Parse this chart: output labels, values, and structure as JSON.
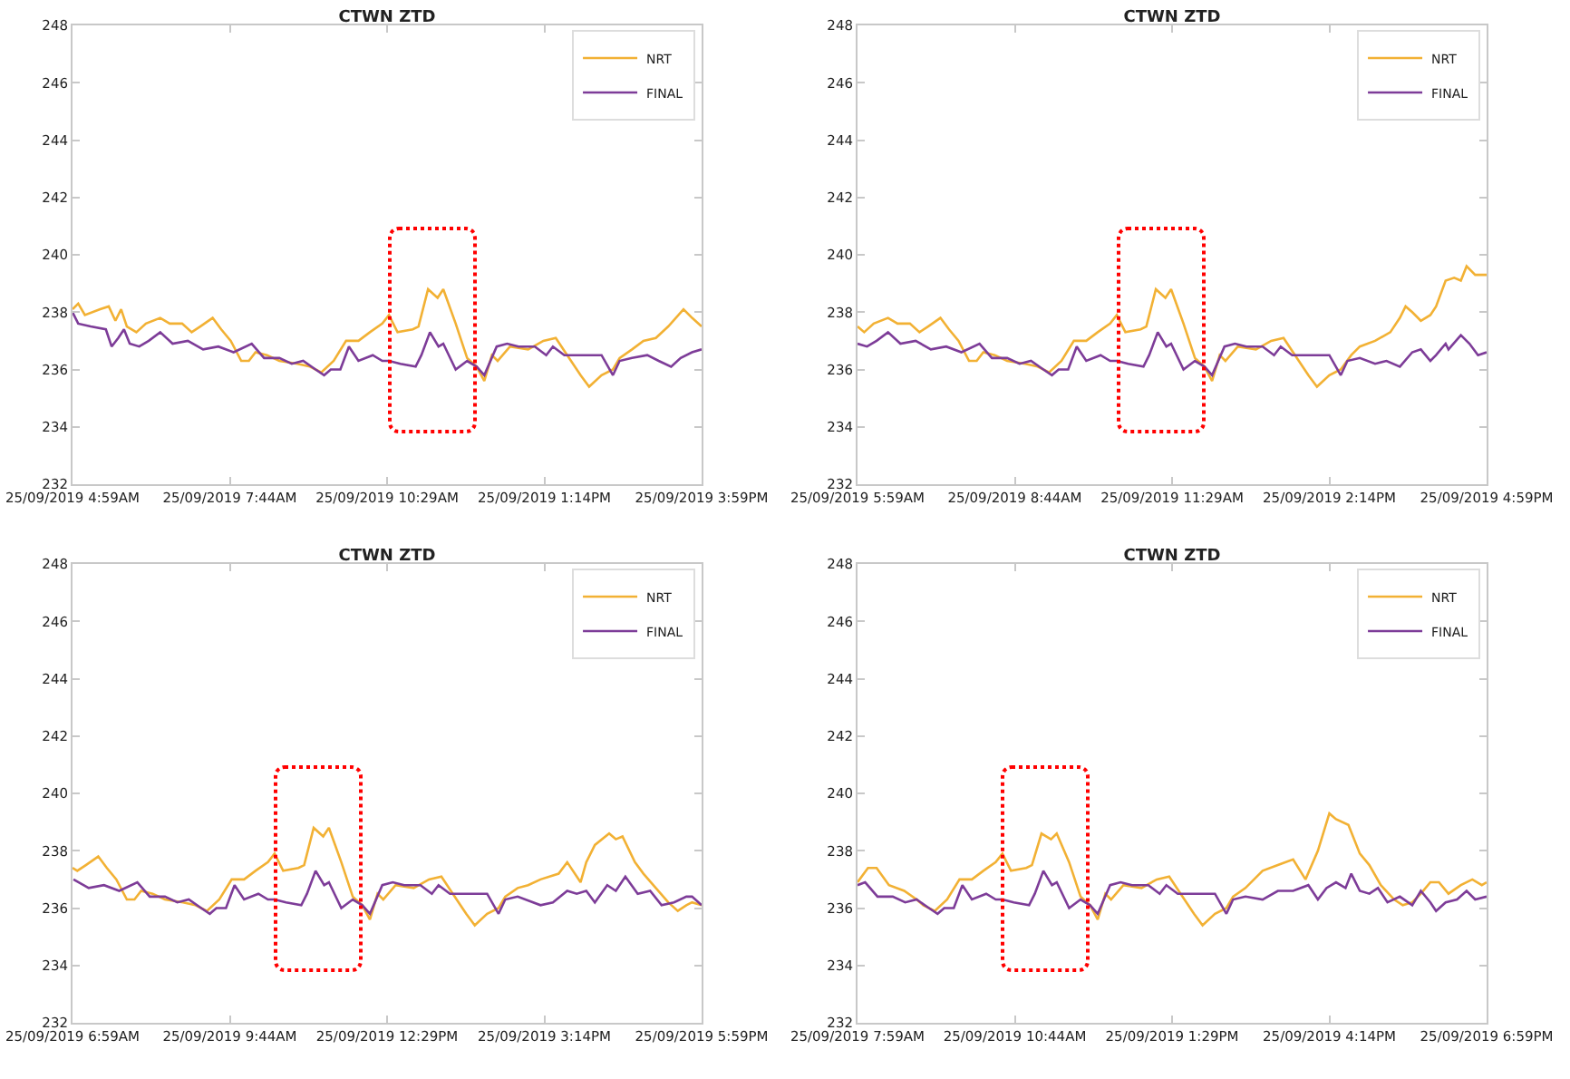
{
  "chart_data": [
    {
      "type": "line",
      "title": "CTWN ZTD",
      "ylim": [
        232,
        248
      ],
      "yticks": [
        232,
        234,
        236,
        238,
        240,
        242,
        244,
        246,
        248
      ],
      "xlim": [
        "2019-09-25T04:59",
        "2019-09-25T15:59"
      ],
      "xticks": [
        {
          "value": "2019-09-25T04:59",
          "label": "25/09/2019 4:59AM"
        },
        {
          "value": "2019-09-25T07:44",
          "label": "25/09/2019 7:44AM"
        },
        {
          "value": "2019-09-25T10:29",
          "label": "25/09/2019 10:29AM"
        },
        {
          "value": "2019-09-25T13:14",
          "label": "25/09/2019 1:14PM"
        },
        {
          "value": "2019-09-25T15:59",
          "label": "25/09/2019 3:59PM"
        }
      ],
      "grid": false,
      "legend": "top right",
      "marker": "none",
      "line_style": "solid",
      "series": [
        {
          "name": "NRT",
          "color": "#f2b134",
          "x": [
            "2019-09-25T04:59",
            "2019-09-25T05:05",
            "2019-09-25T05:12",
            "2019-09-25T05:28",
            "2019-09-25T05:37",
            "2019-09-25T05:44",
            "2019-09-25T05:50",
            "2019-09-25T05:56",
            "2019-09-25T06:06",
            "2019-09-25T06:16",
            "2019-09-25T06:31",
            "2019-09-25T06:41",
            "2019-09-25T06:54",
            "2019-09-25T07:04",
            "2019-09-25T07:13",
            "2019-09-25T07:26",
            "2019-09-25T07:35",
            "2019-09-25T07:45",
            "2019-09-25T07:56",
            "2019-09-25T08:04",
            "2019-09-25T08:11",
            "2019-09-25T08:23",
            "2019-09-25T08:36",
            "2019-09-25T08:55",
            "2019-09-25T09:08",
            "2019-09-25T09:20",
            "2019-09-25T09:33",
            "2019-09-25T09:46",
            "2019-09-25T09:59",
            "2019-09-25T10:11",
            "2019-09-25T10:24",
            "2019-09-25T10:31",
            "2019-09-25T10:40",
            "2019-09-25T10:56",
            "2019-09-25T11:02",
            "2019-09-25T11:12",
            "2019-09-25T11:22",
            "2019-09-25T11:28",
            "2019-09-25T11:41",
            "2019-09-25T11:53",
            "2019-09-25T12:03",
            "2019-09-25T12:11",
            "2019-09-25T12:19",
            "2019-09-25T12:25",
            "2019-09-25T12:38",
            "2019-09-25T12:57",
            "2019-09-25T13:13",
            "2019-09-25T13:26",
            "2019-09-25T13:38",
            "2019-09-25T13:52",
            "2019-09-25T14:01",
            "2019-09-25T14:14",
            "2019-09-25T14:26",
            "2019-09-25T14:33",
            "2019-09-25T14:46",
            "2019-09-25T14:58",
            "2019-09-25T15:11",
            "2019-09-25T15:24",
            "2019-09-25T15:40",
            "2019-09-25T15:49",
            "2019-09-25T15:59"
          ],
          "values": [
            238.1,
            238.3,
            237.9,
            238.1,
            238.2,
            237.7,
            238.1,
            237.5,
            237.3,
            237.6,
            237.8,
            237.6,
            237.6,
            237.3,
            237.5,
            237.8,
            237.4,
            237.0,
            236.3,
            236.3,
            236.6,
            236.5,
            236.3,
            236.2,
            236.1,
            235.9,
            236.3,
            237.0,
            237.0,
            237.3,
            237.6,
            237.9,
            237.3,
            237.4,
            237.5,
            238.8,
            238.5,
            238.8,
            237.6,
            236.4,
            236.1,
            235.6,
            236.5,
            236.3,
            236.8,
            236.7,
            237.0,
            237.1,
            236.5,
            235.8,
            235.4,
            235.8,
            236.0,
            236.4,
            236.7,
            237.0,
            237.1,
            237.5,
            238.1,
            237.8,
            237.5
          ]
        },
        {
          "name": "FINAL",
          "color": "#7d3c98",
          "x": [
            "2019-09-25T04:59",
            "2019-09-25T05:05",
            "2019-09-25T05:18",
            "2019-09-25T05:34",
            "2019-09-25T05:40",
            "2019-09-25T05:47",
            "2019-09-25T05:53",
            "2019-09-25T05:59",
            "2019-09-25T06:09",
            "2019-09-25T06:19",
            "2019-09-25T06:31",
            "2019-09-25T06:44",
            "2019-09-25T07:00",
            "2019-09-25T07:16",
            "2019-09-25T07:32",
            "2019-09-25T07:48",
            "2019-09-25T08:07",
            "2019-09-25T08:20",
            "2019-09-25T08:36",
            "2019-09-25T08:49",
            "2019-09-25T09:01",
            "2019-09-25T09:14",
            "2019-09-25T09:23",
            "2019-09-25T09:30",
            "2019-09-25T09:40",
            "2019-09-25T09:49",
            "2019-09-25T09:59",
            "2019-09-25T10:14",
            "2019-09-25T10:24",
            "2019-09-25T10:31",
            "2019-09-25T10:43",
            "2019-09-25T10:59",
            "2019-09-25T11:05",
            "2019-09-25T11:14",
            "2019-09-25T11:23",
            "2019-09-25T11:28",
            "2019-09-25T11:41",
            "2019-09-25T11:53",
            "2019-09-25T12:03",
            "2019-09-25T12:11",
            "2019-09-25T12:24",
            "2019-09-25T12:35",
            "2019-09-25T12:47",
            "2019-09-25T13:04",
            "2019-09-25T13:16",
            "2019-09-25T13:23",
            "2019-09-25T13:35",
            "2019-09-25T13:52",
            "2019-09-25T14:04",
            "2019-09-25T14:14",
            "2019-09-25T14:26",
            "2019-09-25T14:33",
            "2019-09-25T14:46",
            "2019-09-25T15:02",
            "2019-09-25T15:14",
            "2019-09-25T15:27",
            "2019-09-25T15:37",
            "2019-09-25T15:49",
            "2019-09-25T15:59"
          ],
          "values": [
            238.0,
            237.6,
            237.5,
            237.4,
            236.8,
            237.1,
            237.4,
            236.9,
            236.8,
            237.0,
            237.3,
            236.9,
            237.0,
            236.7,
            236.8,
            236.6,
            236.9,
            236.4,
            236.4,
            236.2,
            236.3,
            236.0,
            235.8,
            236.0,
            236.0,
            236.8,
            236.3,
            236.5,
            236.3,
            236.3,
            236.2,
            236.1,
            236.5,
            237.3,
            236.8,
            236.9,
            236.0,
            236.3,
            236.1,
            235.8,
            236.8,
            236.9,
            236.8,
            236.8,
            236.5,
            236.8,
            236.5,
            236.5,
            236.5,
            236.5,
            235.8,
            236.3,
            236.4,
            236.5,
            236.3,
            236.1,
            236.4,
            236.6,
            236.7
          ]
        }
      ]
    },
    {
      "type": "line",
      "title": "CTWN ZTD",
      "ylim": [
        232,
        248
      ],
      "yticks": [
        232,
        234,
        236,
        238,
        240,
        242,
        244,
        246,
        248
      ],
      "xlim": [
        "2019-09-25T05:59",
        "2019-09-25T16:59"
      ],
      "xticks": [
        {
          "value": "2019-09-25T05:59",
          "label": "25/09/2019 5:59AM"
        },
        {
          "value": "2019-09-25T08:44",
          "label": "25/09/2019 8:44AM"
        },
        {
          "value": "2019-09-25T11:29",
          "label": "25/09/2019 11:29AM"
        },
        {
          "value": "2019-09-25T14:14",
          "label": "25/09/2019 2:14PM"
        },
        {
          "value": "2019-09-25T16:59",
          "label": "25/09/2019 4:59PM"
        }
      ],
      "grid": false,
      "legend": "top right",
      "marker": "none",
      "line_style": "solid",
      "series": [
        {
          "name": "NRT",
          "color": "#f2b134",
          "x": [
            "2019-09-25T05:59",
            "2019-09-25T06:06",
            "2019-09-25T06:16",
            "2019-09-25T06:31",
            "2019-09-25T06:41",
            "2019-09-25T06:54",
            "2019-09-25T07:04",
            "2019-09-25T07:13",
            "2019-09-25T07:26",
            "2019-09-25T07:35",
            "2019-09-25T07:45",
            "2019-09-25T07:56",
            "2019-09-25T08:04",
            "2019-09-25T08:11",
            "2019-09-25T08:23",
            "2019-09-25T08:36",
            "2019-09-25T08:55",
            "2019-09-25T09:08",
            "2019-09-25T09:20",
            "2019-09-25T09:33",
            "2019-09-25T09:46",
            "2019-09-25T09:59",
            "2019-09-25T10:11",
            "2019-09-25T10:24",
            "2019-09-25T10:31",
            "2019-09-25T10:40",
            "2019-09-25T10:56",
            "2019-09-25T11:02",
            "2019-09-25T11:12",
            "2019-09-25T11:22",
            "2019-09-25T11:28",
            "2019-09-25T11:41",
            "2019-09-25T11:53",
            "2019-09-25T12:03",
            "2019-09-25T12:11",
            "2019-09-25T12:19",
            "2019-09-25T12:25",
            "2019-09-25T12:38",
            "2019-09-25T12:57",
            "2019-09-25T13:13",
            "2019-09-25T13:26",
            "2019-09-25T13:38",
            "2019-09-25T13:52",
            "2019-09-25T14:01",
            "2019-09-25T14:14",
            "2019-09-25T14:26",
            "2019-09-25T14:37",
            "2019-09-25T14:46",
            "2019-09-25T15:02",
            "2019-09-25T15:18",
            "2019-09-25T15:28",
            "2019-09-25T15:34",
            "2019-09-25T15:41",
            "2019-09-25T15:50",
            "2019-09-25T16:00",
            "2019-09-25T16:06",
            "2019-09-25T16:16",
            "2019-09-25T16:25",
            "2019-09-25T16:32",
            "2019-09-25T16:38",
            "2019-09-25T16:47",
            "2019-09-25T16:59"
          ],
          "values": [
            237.5,
            237.3,
            237.6,
            237.8,
            237.6,
            237.6,
            237.3,
            237.5,
            237.8,
            237.4,
            237.0,
            236.3,
            236.3,
            236.6,
            236.5,
            236.3,
            236.2,
            236.1,
            235.9,
            236.3,
            237.0,
            237.0,
            237.3,
            237.6,
            237.9,
            237.3,
            237.4,
            237.5,
            238.8,
            238.5,
            238.8,
            237.6,
            236.4,
            236.1,
            235.6,
            236.5,
            236.3,
            236.8,
            236.7,
            237.0,
            237.1,
            236.5,
            235.8,
            235.4,
            235.8,
            236.0,
            236.5,
            236.8,
            237.0,
            237.3,
            237.8,
            238.2,
            238.0,
            237.7,
            237.9,
            238.2,
            239.1,
            239.2,
            239.1,
            239.6,
            239.3,
            239.3
          ]
        },
        {
          "name": "FINAL",
          "color": "#7d3c98",
          "x": [
            "2019-09-25T05:59",
            "2019-09-25T06:09",
            "2019-09-25T06:19",
            "2019-09-25T06:31",
            "2019-09-25T06:44",
            "2019-09-25T07:00",
            "2019-09-25T07:16",
            "2019-09-25T07:32",
            "2019-09-25T07:48",
            "2019-09-25T08:07",
            "2019-09-25T08:20",
            "2019-09-25T08:36",
            "2019-09-25T08:49",
            "2019-09-25T09:01",
            "2019-09-25T09:14",
            "2019-09-25T09:23",
            "2019-09-25T09:30",
            "2019-09-25T09:40",
            "2019-09-25T09:49",
            "2019-09-25T09:59",
            "2019-09-25T10:14",
            "2019-09-25T10:24",
            "2019-09-25T10:31",
            "2019-09-25T10:43",
            "2019-09-25T10:59",
            "2019-09-25T11:05",
            "2019-09-25T11:14",
            "2019-09-25T11:23",
            "2019-09-25T11:28",
            "2019-09-25T11:41",
            "2019-09-25T11:53",
            "2019-09-25T12:03",
            "2019-09-25T12:11",
            "2019-09-25T12:24",
            "2019-09-25T12:35",
            "2019-09-25T12:47",
            "2019-09-25T13:04",
            "2019-09-25T13:16",
            "2019-09-25T13:23",
            "2019-09-25T13:35",
            "2019-09-25T13:52",
            "2019-09-25T14:04",
            "2019-09-25T14:14",
            "2019-09-25T14:26",
            "2019-09-25T14:33",
            "2019-09-25T14:46",
            "2019-09-25T15:02",
            "2019-09-25T15:14",
            "2019-09-25T15:28",
            "2019-09-25T15:41",
            "2019-09-25T15:50",
            "2019-09-25T16:00",
            "2019-09-25T16:06",
            "2019-09-25T16:16",
            "2019-09-25T16:19",
            "2019-09-25T16:32",
            "2019-09-25T16:41",
            "2019-09-25T16:50",
            "2019-09-25T16:59"
          ],
          "values": [
            236.9,
            236.8,
            237.0,
            237.3,
            236.9,
            237.0,
            236.7,
            236.8,
            236.6,
            236.9,
            236.4,
            236.4,
            236.2,
            236.3,
            236.0,
            235.8,
            236.0,
            236.0,
            236.8,
            236.3,
            236.5,
            236.3,
            236.3,
            236.2,
            236.1,
            236.5,
            237.3,
            236.8,
            236.9,
            236.0,
            236.3,
            236.1,
            235.8,
            236.8,
            236.9,
            236.8,
            236.8,
            236.5,
            236.8,
            236.5,
            236.5,
            236.5,
            236.5,
            235.8,
            236.3,
            236.4,
            236.2,
            236.3,
            236.1,
            236.6,
            236.7,
            236.3,
            236.5,
            236.9,
            236.7,
            237.2,
            236.9,
            236.5,
            236.6
          ]
        }
      ]
    },
    {
      "type": "line",
      "title": "CTWN ZTD",
      "ylim": [
        232,
        248
      ],
      "yticks": [
        232,
        234,
        236,
        238,
        240,
        242,
        244,
        246,
        248
      ],
      "xlim": [
        "2019-09-25T06:59",
        "2019-09-25T17:59"
      ],
      "xticks": [
        {
          "value": "2019-09-25T06:59",
          "label": "25/09/2019 6:59AM"
        },
        {
          "value": "2019-09-25T09:44",
          "label": "25/09/2019 9:44AM"
        },
        {
          "value": "2019-09-25T12:29",
          "label": "25/09/2019 12:29PM"
        },
        {
          "value": "2019-09-25T15:14",
          "label": "25/09/2019 3:14PM"
        },
        {
          "value": "2019-09-25T17:59",
          "label": "25/09/2019 5:59PM"
        }
      ],
      "grid": false,
      "legend": "top right",
      "marker": "none",
      "line_style": "solid",
      "series": [
        {
          "name": "NRT",
          "color": "#f2b134",
          "x": [
            "2019-09-25T06:59",
            "2019-09-25T07:04",
            "2019-09-25T07:13",
            "2019-09-25T07:26",
            "2019-09-25T07:35",
            "2019-09-25T07:45",
            "2019-09-25T07:56",
            "2019-09-25T08:04",
            "2019-09-25T08:11",
            "2019-09-25T08:23",
            "2019-09-25T08:36",
            "2019-09-25T08:55",
            "2019-09-25T09:08",
            "2019-09-25T09:20",
            "2019-09-25T09:33",
            "2019-09-25T09:46",
            "2019-09-25T09:59",
            "2019-09-25T10:11",
            "2019-09-25T10:24",
            "2019-09-25T10:31",
            "2019-09-25T10:40",
            "2019-09-25T10:56",
            "2019-09-25T11:02",
            "2019-09-25T11:12",
            "2019-09-25T11:22",
            "2019-09-25T11:28",
            "2019-09-25T11:41",
            "2019-09-25T11:53",
            "2019-09-25T12:03",
            "2019-09-25T12:11",
            "2019-09-25T12:19",
            "2019-09-25T12:25",
            "2019-09-25T12:38",
            "2019-09-25T12:57",
            "2019-09-25T13:13",
            "2019-09-25T13:26",
            "2019-09-25T13:38",
            "2019-09-25T13:52",
            "2019-09-25T14:01",
            "2019-09-25T14:14",
            "2019-09-25T14:26",
            "2019-09-25T14:33",
            "2019-09-25T14:46",
            "2019-09-25T14:57",
            "2019-09-25T15:10",
            "2019-09-25T15:29",
            "2019-09-25T15:38",
            "2019-09-25T15:52",
            "2019-09-25T15:58",
            "2019-09-25T16:07",
            "2019-09-25T16:22",
            "2019-09-25T16:29",
            "2019-09-25T16:36",
            "2019-09-25T16:49",
            "2019-09-25T16:58",
            "2019-09-25T17:11",
            "2019-09-25T17:24",
            "2019-09-25T17:34",
            "2019-09-25T17:43",
            "2019-09-25T17:49",
            "2019-09-25T17:59"
          ],
          "values": [
            237.4,
            237.3,
            237.5,
            237.8,
            237.4,
            237.0,
            236.3,
            236.3,
            236.6,
            236.5,
            236.3,
            236.2,
            236.1,
            235.9,
            236.3,
            237.0,
            237.0,
            237.3,
            237.6,
            237.9,
            237.3,
            237.4,
            237.5,
            238.8,
            238.5,
            238.8,
            237.6,
            236.4,
            236.1,
            235.6,
            236.5,
            236.3,
            236.8,
            236.7,
            237.0,
            237.1,
            236.5,
            235.8,
            235.4,
            235.8,
            236.0,
            236.4,
            236.7,
            236.8,
            237.0,
            237.2,
            237.6,
            236.9,
            237.6,
            238.2,
            238.6,
            238.4,
            238.5,
            237.6,
            237.2,
            236.7,
            236.2,
            235.9,
            236.1,
            236.2,
            236.1
          ]
        },
        {
          "name": "FINAL",
          "color": "#7d3c98",
          "x": [
            "2019-09-25T07:00",
            "2019-09-25T07:16",
            "2019-09-25T07:32",
            "2019-09-25T07:48",
            "2019-09-25T08:07",
            "2019-09-25T08:20",
            "2019-09-25T08:36",
            "2019-09-25T08:49",
            "2019-09-25T09:01",
            "2019-09-25T09:14",
            "2019-09-25T09:23",
            "2019-09-25T09:30",
            "2019-09-25T09:40",
            "2019-09-25T09:49",
            "2019-09-25T09:59",
            "2019-09-25T10:14",
            "2019-09-25T10:24",
            "2019-09-25T10:31",
            "2019-09-25T10:43",
            "2019-09-25T10:59",
            "2019-09-25T11:05",
            "2019-09-25T11:14",
            "2019-09-25T11:23",
            "2019-09-25T11:28",
            "2019-09-25T11:41",
            "2019-09-25T11:53",
            "2019-09-25T12:03",
            "2019-09-25T12:11",
            "2019-09-25T12:24",
            "2019-09-25T12:35",
            "2019-09-25T12:47",
            "2019-09-25T13:04",
            "2019-09-25T13:16",
            "2019-09-25T13:23",
            "2019-09-25T13:35",
            "2019-09-25T13:52",
            "2019-09-25T14:04",
            "2019-09-25T14:14",
            "2019-09-25T14:26",
            "2019-09-25T14:33",
            "2019-09-25T14:46",
            "2019-09-25T15:10",
            "2019-09-25T15:23",
            "2019-09-25T15:38",
            "2019-09-25T15:48",
            "2019-09-25T15:58",
            "2019-09-25T16:07",
            "2019-09-25T16:20",
            "2019-09-25T16:29",
            "2019-09-25T16:39",
            "2019-09-25T16:52",
            "2019-09-25T17:05",
            "2019-09-25T17:17",
            "2019-09-25T17:30",
            "2019-09-25T17:43",
            "2019-09-25T17:49",
            "2019-09-25T17:59"
          ],
          "values": [
            237.0,
            236.7,
            236.8,
            236.6,
            236.9,
            236.4,
            236.4,
            236.2,
            236.3,
            236.0,
            235.8,
            236.0,
            236.0,
            236.8,
            236.3,
            236.5,
            236.3,
            236.3,
            236.2,
            236.1,
            236.5,
            237.3,
            236.8,
            236.9,
            236.0,
            236.3,
            236.1,
            235.8,
            236.8,
            236.9,
            236.8,
            236.8,
            236.5,
            236.8,
            236.5,
            236.5,
            236.5,
            236.5,
            235.8,
            236.3,
            236.4,
            236.1,
            236.2,
            236.6,
            236.5,
            236.6,
            236.2,
            236.8,
            236.6,
            237.1,
            236.5,
            236.6,
            236.1,
            236.2,
            236.4,
            236.4,
            236.1
          ]
        }
      ]
    },
    {
      "type": "line",
      "title": "CTWN ZTD",
      "ylim": [
        232,
        248
      ],
      "yticks": [
        232,
        234,
        236,
        238,
        240,
        242,
        244,
        246,
        248
      ],
      "xlim": [
        "2019-09-25T07:59",
        "2019-09-25T18:59"
      ],
      "xticks": [
        {
          "value": "2019-09-25T07:59",
          "label": "25/09/2019 7:59AM"
        },
        {
          "value": "2019-09-25T10:44",
          "label": "25/09/2019 10:44AM"
        },
        {
          "value": "2019-09-25T13:29",
          "label": "25/09/2019 1:29PM"
        },
        {
          "value": "2019-09-25T16:14",
          "label": "25/09/2019 4:14PM"
        },
        {
          "value": "2019-09-25T18:59",
          "label": "25/09/2019 6:59PM"
        }
      ],
      "grid": false,
      "legend": "top right",
      "marker": "none",
      "line_style": "solid",
      "series": [
        {
          "name": "NRT",
          "color": "#f2b134",
          "x": [
            "2019-09-25T07:59",
            "2019-09-25T08:10",
            "2019-09-25T08:19",
            "2019-09-25T08:32",
            "2019-09-25T08:48",
            "2019-09-25T09:01",
            "2019-09-25T09:08",
            "2019-09-25T09:20",
            "2019-09-25T09:33",
            "2019-09-25T09:46",
            "2019-09-25T09:59",
            "2019-09-25T10:11",
            "2019-09-25T10:24",
            "2019-09-25T10:31",
            "2019-09-25T10:40",
            "2019-09-25T10:56",
            "2019-09-25T11:02",
            "2019-09-25T11:12",
            "2019-09-25T11:22",
            "2019-09-25T11:28",
            "2019-09-25T11:41",
            "2019-09-25T11:53",
            "2019-09-25T12:03",
            "2019-09-25T12:11",
            "2019-09-25T12:19",
            "2019-09-25T12:25",
            "2019-09-25T12:38",
            "2019-09-25T12:57",
            "2019-09-25T13:13",
            "2019-09-25T13:26",
            "2019-09-25T13:38",
            "2019-09-25T13:52",
            "2019-09-25T14:01",
            "2019-09-25T14:14",
            "2019-09-25T14:26",
            "2019-09-25T14:33",
            "2019-09-25T14:46",
            "2019-09-25T15:04",
            "2019-09-25T15:20",
            "2019-09-25T15:36",
            "2019-09-25T15:49",
            "2019-09-25T16:02",
            "2019-09-25T16:14",
            "2019-09-25T16:21",
            "2019-09-25T16:34",
            "2019-09-25T16:46",
            "2019-09-25T16:56",
            "2019-09-25T17:08",
            "2019-09-25T17:22",
            "2019-09-25T17:31",
            "2019-09-25T17:41",
            "2019-09-25T17:50",
            "2019-09-25T18:00",
            "2019-09-25T18:09",
            "2019-09-25T18:19",
            "2019-09-25T18:32",
            "2019-09-25T18:44",
            "2019-09-25T18:54",
            "2019-09-25T18:59"
          ],
          "values": [
            236.9,
            237.4,
            237.4,
            236.8,
            236.6,
            236.3,
            236.1,
            235.9,
            236.3,
            237.0,
            237.0,
            237.3,
            237.6,
            237.9,
            237.3,
            237.4,
            237.5,
            238.6,
            238.4,
            238.6,
            237.6,
            236.4,
            236.1,
            235.6,
            236.5,
            236.3,
            236.8,
            236.7,
            237.0,
            237.1,
            236.5,
            235.8,
            235.4,
            235.8,
            236.0,
            236.4,
            236.7,
            237.3,
            237.5,
            237.7,
            237.0,
            238.0,
            239.3,
            239.1,
            238.9,
            237.9,
            237.5,
            236.8,
            236.3,
            236.1,
            236.2,
            236.5,
            236.9,
            236.9,
            236.5,
            236.8,
            237.0,
            236.8,
            236.9
          ]
        },
        {
          "name": "FINAL",
          "color": "#7d3c98",
          "x": [
            "2019-09-25T07:59",
            "2019-09-25T08:07",
            "2019-09-25T08:20",
            "2019-09-25T08:36",
            "2019-09-25T08:49",
            "2019-09-25T09:01",
            "2019-09-25T09:14",
            "2019-09-25T09:23",
            "2019-09-25T09:30",
            "2019-09-25T09:40",
            "2019-09-25T09:49",
            "2019-09-25T09:59",
            "2019-09-25T10:14",
            "2019-09-25T10:24",
            "2019-09-25T10:31",
            "2019-09-25T10:43",
            "2019-09-25T10:59",
            "2019-09-25T11:05",
            "2019-09-25T11:14",
            "2019-09-25T11:23",
            "2019-09-25T11:28",
            "2019-09-25T11:41",
            "2019-09-25T11:53",
            "2019-09-25T12:03",
            "2019-09-25T12:11",
            "2019-09-25T12:24",
            "2019-09-25T12:35",
            "2019-09-25T12:47",
            "2019-09-25T13:04",
            "2019-09-25T13:16",
            "2019-09-25T13:23",
            "2019-09-25T13:35",
            "2019-09-25T13:52",
            "2019-09-25T14:04",
            "2019-09-25T14:14",
            "2019-09-25T14:26",
            "2019-09-25T14:33",
            "2019-09-25T14:46",
            "2019-09-25T15:04",
            "2019-09-25T15:20",
            "2019-09-25T15:36",
            "2019-09-25T15:52",
            "2019-09-25T16:02",
            "2019-09-25T16:11",
            "2019-09-25T16:21",
            "2019-09-25T16:31",
            "2019-09-25T16:37",
            "2019-09-25T16:46",
            "2019-09-25T16:56",
            "2019-09-25T17:05",
            "2019-09-25T17:15",
            "2019-09-25T17:28",
            "2019-09-25T17:41",
            "2019-09-25T17:50",
            "2019-09-25T18:00",
            "2019-09-25T18:06",
            "2019-09-25T18:16",
            "2019-09-25T18:28",
            "2019-09-25T18:38",
            "2019-09-25T18:47",
            "2019-09-25T18:59"
          ],
          "values": [
            236.8,
            236.9,
            236.4,
            236.4,
            236.2,
            236.3,
            236.0,
            235.8,
            236.0,
            236.0,
            236.8,
            236.3,
            236.5,
            236.3,
            236.3,
            236.2,
            236.1,
            236.5,
            237.3,
            236.8,
            236.9,
            236.0,
            236.3,
            236.1,
            235.8,
            236.8,
            236.9,
            236.8,
            236.8,
            236.5,
            236.8,
            236.5,
            236.5,
            236.5,
            236.5,
            235.8,
            236.3,
            236.4,
            236.3,
            236.6,
            236.6,
            236.8,
            236.3,
            236.7,
            236.9,
            236.7,
            237.2,
            236.6,
            236.5,
            236.7,
            236.2,
            236.4,
            236.1,
            236.6,
            236.2,
            235.9,
            236.2,
            236.3,
            236.6,
            236.3,
            236.4
          ]
        }
      ]
    }
  ]
}
